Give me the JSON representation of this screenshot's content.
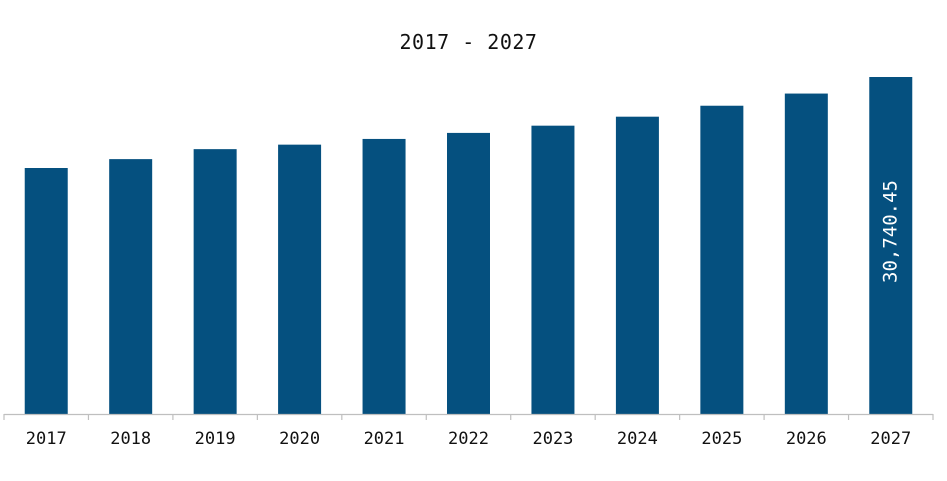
{
  "chart_data": {
    "type": "bar",
    "title": "2017 - 2027",
    "xlabel": "",
    "ylabel": "",
    "categories": [
      "2017",
      "2018",
      "2019",
      "2020",
      "2021",
      "2022",
      "2023",
      "2024",
      "2025",
      "2026",
      "2027"
    ],
    "values": [
      22440,
      23250,
      24160,
      24570,
      25090,
      25640,
      26300,
      27120,
      28120,
      29230,
      30740.45
    ],
    "data_labels": [
      {
        "category": "2027",
        "text": "30,740.45"
      }
    ],
    "ylim": [
      0,
      30740.45
    ],
    "grid": false,
    "legend": "none",
    "colors": {
      "bar": "#05507f",
      "axis": "#bfbfbf",
      "text": "#111111",
      "label_on_bar": "#ffffff"
    }
  }
}
